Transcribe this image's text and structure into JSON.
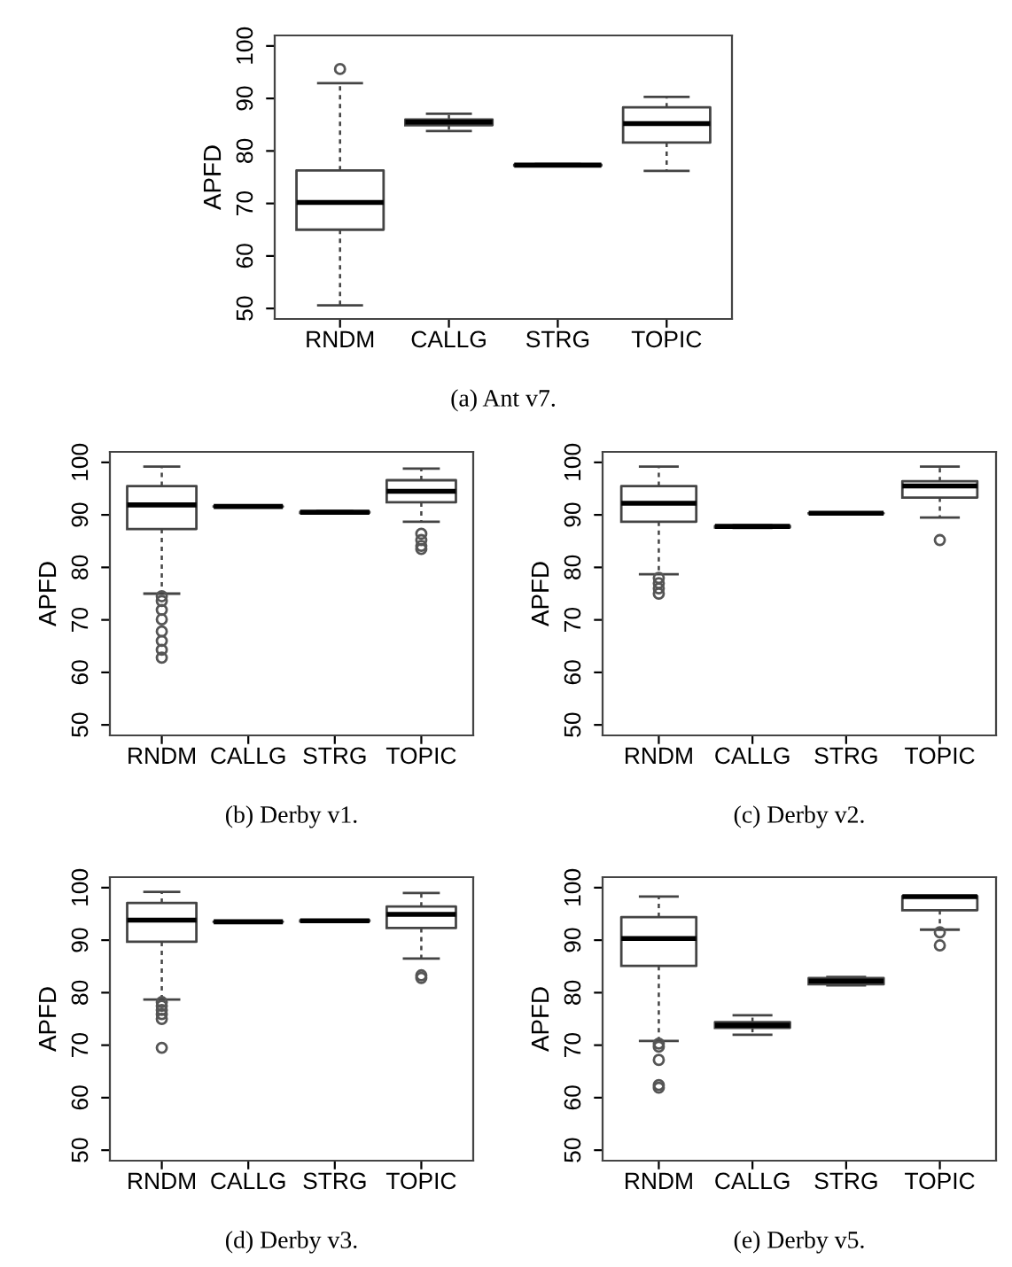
{
  "chart_data": [
    {
      "type": "box",
      "title": "(a) Ant v7.",
      "ylabel": "APFD",
      "categories": [
        "RNDM",
        "CALLG",
        "STRG",
        "TOPIC"
      ],
      "ylim": [
        48,
        102
      ],
      "yticks": [
        50,
        60,
        70,
        80,
        90,
        100
      ],
      "marker": "circle",
      "boxes": [
        {
          "low": 50.6,
          "q1": 65.0,
          "median": 70.2,
          "q3": 76.3,
          "high": 92.9,
          "outliers": [
            95.6
          ]
        },
        {
          "low": 83.8,
          "q1": 84.9,
          "median": 85.5,
          "q3": 86.0,
          "high": 87.1
        },
        {
          "low": 77.1,
          "q1": 77.2,
          "median": 77.3,
          "q3": 77.4,
          "high": 77.5
        },
        {
          "low": 76.2,
          "q1": 81.6,
          "median": 85.2,
          "q3": 88.3,
          "high": 90.3
        }
      ]
    },
    {
      "type": "box",
      "title": "(b) Derby v1.",
      "ylabel": "APFD",
      "categories": [
        "RNDM",
        "CALLG",
        "STRG",
        "TOPIC"
      ],
      "ylim": [
        48,
        102
      ],
      "yticks": [
        50,
        60,
        70,
        80,
        90,
        100
      ],
      "marker": "circle",
      "boxes": [
        {
          "low": 75.0,
          "q1": 87.3,
          "median": 91.9,
          "q3": 95.5,
          "high": 99.2,
          "outliers": [
            74.5,
            73.6,
            71.9,
            70.1,
            67.8,
            66.0,
            64.3,
            62.8
          ]
        },
        {
          "low": 91.6,
          "q1": 91.6,
          "median": 91.6,
          "q3": 91.6,
          "high": 91.6
        },
        {
          "low": 90.3,
          "q1": 90.4,
          "median": 90.5,
          "q3": 90.6,
          "high": 90.7
        },
        {
          "low": 88.7,
          "q1": 92.4,
          "median": 94.5,
          "q3": 96.6,
          "high": 98.8,
          "outliers": [
            86.4,
            85.2,
            84.1,
            83.5
          ]
        }
      ]
    },
    {
      "type": "box",
      "title": "(c) Derby v2.",
      "ylabel": "APFD",
      "categories": [
        "RNDM",
        "CALLG",
        "STRG",
        "TOPIC"
      ],
      "ylim": [
        48,
        102
      ],
      "yticks": [
        50,
        60,
        70,
        80,
        90,
        100
      ],
      "marker": "circle",
      "boxes": [
        {
          "low": 78.7,
          "q1": 88.7,
          "median": 92.2,
          "q3": 95.5,
          "high": 99.2,
          "outliers": [
            78.0,
            77.0,
            76.0,
            75.0
          ]
        },
        {
          "low": 87.5,
          "q1": 87.6,
          "median": 87.8,
          "q3": 87.9,
          "high": 88.0
        },
        {
          "low": 90.3,
          "q1": 90.3,
          "median": 90.3,
          "q3": 90.3,
          "high": 90.3
        },
        {
          "low": 89.5,
          "q1": 93.3,
          "median": 95.5,
          "q3": 96.4,
          "high": 99.2,
          "outliers": [
            85.2
          ]
        }
      ]
    },
    {
      "type": "box",
      "title": "(d) Derby v3.",
      "ylabel": "APFD",
      "categories": [
        "RNDM",
        "CALLG",
        "STRG",
        "TOPIC"
      ],
      "ylim": [
        48,
        102
      ],
      "yticks": [
        50,
        60,
        70,
        80,
        90,
        100
      ],
      "marker": "circle",
      "boxes": [
        {
          "low": 78.7,
          "q1": 89.7,
          "median": 93.8,
          "q3": 97.1,
          "high": 99.2,
          "outliers": [
            78.2,
            77.5,
            76.7,
            75.9,
            75.0,
            69.5
          ]
        },
        {
          "low": 93.5,
          "q1": 93.5,
          "median": 93.5,
          "q3": 93.5,
          "high": 93.5
        },
        {
          "low": 93.6,
          "q1": 93.6,
          "median": 93.7,
          "q3": 93.8,
          "high": 93.8
        },
        {
          "low": 86.5,
          "q1": 92.3,
          "median": 94.9,
          "q3": 96.4,
          "high": 99.0,
          "outliers": [
            83.3,
            82.8
          ]
        }
      ]
    },
    {
      "type": "box",
      "title": "(e) Derby v5.",
      "ylabel": "APFD",
      "categories": [
        "RNDM",
        "CALLG",
        "STRG",
        "TOPIC"
      ],
      "ylim": [
        48,
        102
      ],
      "yticks": [
        50,
        60,
        70,
        80,
        90,
        100
      ],
      "marker": "circle",
      "boxes": [
        {
          "low": 70.8,
          "q1": 85.1,
          "median": 90.3,
          "q3": 94.4,
          "high": 98.3,
          "outliers": [
            70.3,
            69.7,
            67.2,
            62.4,
            61.9
          ]
        },
        {
          "low": 72.0,
          "q1": 73.3,
          "median": 73.8,
          "q3": 74.4,
          "high": 75.7
        },
        {
          "low": 81.4,
          "q1": 81.6,
          "median": 82.2,
          "q3": 82.8,
          "high": 83.0
        },
        {
          "low": 92.0,
          "q1": 95.7,
          "median": 98.3,
          "q3": 98.4,
          "high": 98.4,
          "outliers": [
            91.5,
            89.0
          ]
        }
      ]
    }
  ]
}
